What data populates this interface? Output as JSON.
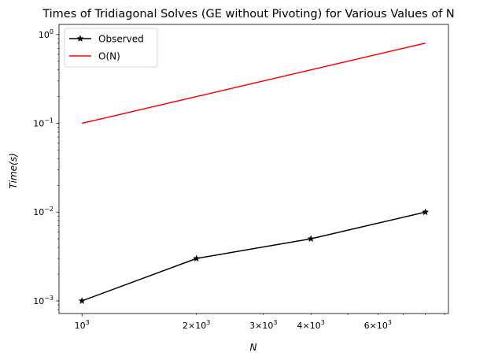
{
  "chart_data": {
    "type": "line",
    "title": "Times of Tridiagonal Solves (GE without Pivoting) for Various Values of N",
    "xlabel": "N",
    "ylabel": "Time(s)",
    "xscale": "log",
    "yscale": "log",
    "xlim": [
      870,
      9200
    ],
    "ylim": [
      0.00072,
      1.3
    ],
    "grid": false,
    "legend_position": "top-left",
    "x_ticks": [
      {
        "value": 1000,
        "base": "10",
        "exp": "3"
      },
      {
        "value": 2000,
        "base": "2×10",
        "exp": "3"
      },
      {
        "value": 3000,
        "base": "3×10",
        "exp": "3"
      },
      {
        "value": 4000,
        "base": "4×10",
        "exp": "3"
      },
      {
        "value": 6000,
        "base": "6×10",
        "exp": "3"
      }
    ],
    "y_ticks": [
      {
        "value": 0.001,
        "base": "10",
        "exp": "−3"
      },
      {
        "value": 0.01,
        "base": "10",
        "exp": "−2"
      },
      {
        "value": 0.1,
        "base": "10",
        "exp": "−1"
      },
      {
        "value": 1,
        "base": "10",
        "exp": "0"
      }
    ],
    "series": [
      {
        "name": "Observed",
        "color": "#000000",
        "marker": "star",
        "x": [
          1000,
          2000,
          4000,
          8000
        ],
        "y": [
          0.001,
          0.003,
          0.005,
          0.01
        ]
      },
      {
        "name": "O(N)",
        "color": "#ff0000",
        "marker": "none",
        "x": [
          1000,
          8000
        ],
        "y": [
          0.1,
          0.8
        ]
      }
    ]
  }
}
